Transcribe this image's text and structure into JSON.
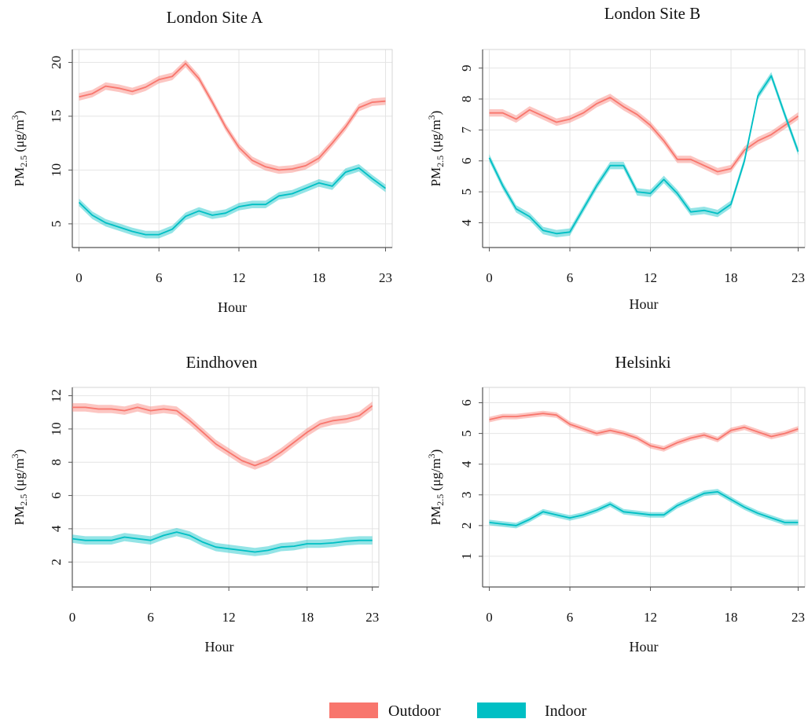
{
  "colors": {
    "outdoor": "#f8766d",
    "indoor": "#00bfc4",
    "grid": "#e4e4e4",
    "axis": "#555555"
  },
  "legend": {
    "position": "bottom",
    "items": [
      {
        "label": "Outdoor",
        "color": "#f8766d"
      },
      {
        "label": "Indoor",
        "color": "#00bfc4"
      }
    ]
  },
  "chart_data": [
    {
      "type": "line",
      "title": "London Site A",
      "xlabel": "Hour",
      "ylabel_pm": "PM",
      "ylabel_sub": "2.5",
      "ylabel_unit": " (μg/m",
      "ylabel_sup": "3",
      "ylabel_end": ")",
      "xticks": [
        0,
        6,
        12,
        18,
        23
      ],
      "yticks": [
        5,
        10,
        15,
        20
      ],
      "xlim": [
        -0.5,
        23.5
      ],
      "ylim": [
        2.8,
        21.2
      ],
      "band": 0.35,
      "x": [
        0,
        1,
        2,
        3,
        4,
        5,
        6,
        7,
        8,
        9,
        10,
        11,
        12,
        13,
        14,
        15,
        16,
        17,
        18,
        19,
        20,
        21,
        22,
        23
      ],
      "series": [
        {
          "name": "Outdoor",
          "values": [
            16.8,
            17.1,
            17.8,
            17.6,
            17.3,
            17.7,
            18.4,
            18.7,
            19.9,
            18.5,
            16.3,
            14.0,
            12.1,
            10.9,
            10.3,
            10.0,
            10.1,
            10.4,
            11.1,
            12.5,
            14.0,
            15.8,
            16.3,
            16.4
          ]
        },
        {
          "name": "Indoor",
          "values": [
            7.0,
            5.8,
            5.1,
            4.7,
            4.3,
            4.0,
            4.0,
            4.5,
            5.7,
            6.2,
            5.8,
            6.0,
            6.6,
            6.8,
            6.8,
            7.6,
            7.8,
            8.3,
            8.8,
            8.5,
            9.8,
            10.2,
            9.2,
            8.3
          ]
        }
      ]
    },
    {
      "type": "line",
      "title": "London Site B",
      "xlabel": "Hour",
      "ylabel_pm": "PM",
      "ylabel_sub": "2.5",
      "ylabel_unit": " (μg/m",
      "ylabel_sup": "3",
      "ylabel_end": ")",
      "xticks": [
        0,
        6,
        12,
        18,
        23
      ],
      "yticks": [
        4,
        5,
        6,
        7,
        8,
        9
      ],
      "xlim": [
        -0.5,
        23.5
      ],
      "ylim": [
        3.2,
        9.6
      ],
      "band": 0.12,
      "x": [
        0,
        1,
        2,
        3,
        4,
        5,
        6,
        7,
        8,
        9,
        10,
        11,
        12,
        13,
        14,
        15,
        16,
        17,
        18,
        19,
        20,
        21,
        22,
        23
      ],
      "series": [
        {
          "name": "Outdoor",
          "values": [
            7.55,
            7.55,
            7.35,
            7.65,
            7.45,
            7.25,
            7.35,
            7.55,
            7.85,
            8.05,
            7.75,
            7.5,
            7.15,
            6.65,
            6.05,
            6.05,
            5.85,
            5.65,
            5.75,
            6.35,
            6.65,
            6.85,
            7.15,
            7.45
          ]
        },
        {
          "name": "Indoor",
          "values": [
            6.1,
            5.2,
            4.45,
            4.2,
            3.75,
            3.65,
            3.7,
            4.45,
            5.2,
            5.85,
            5.85,
            5.0,
            4.95,
            5.4,
            4.95,
            4.35,
            4.4,
            4.3,
            4.6,
            6.0,
            8.1,
            8.75,
            7.5,
            6.3
          ]
        }
      ]
    },
    {
      "type": "line",
      "title": "Eindhoven",
      "xlabel": "Hour",
      "ylabel_pm": "PM",
      "ylabel_sub": "2.5",
      "ylabel_unit": " (μg/m",
      "ylabel_sup": "3",
      "ylabel_end": ")",
      "xticks": [
        0,
        6,
        12,
        18,
        23
      ],
      "yticks": [
        2,
        4,
        6,
        8,
        10,
        12
      ],
      "xlim": [
        0,
        23.5
      ],
      "ylim": [
        0.5,
        12.5
      ],
      "band": 0.25,
      "x": [
        0,
        1,
        2,
        3,
        4,
        5,
        6,
        7,
        8,
        9,
        10,
        11,
        12,
        13,
        14,
        15,
        16,
        17,
        18,
        19,
        20,
        21,
        22,
        23
      ],
      "series": [
        {
          "name": "Outdoor",
          "values": [
            11.3,
            11.3,
            11.2,
            11.2,
            11.1,
            11.3,
            11.1,
            11.2,
            11.1,
            10.5,
            9.8,
            9.1,
            8.6,
            8.1,
            7.8,
            8.1,
            8.6,
            9.2,
            9.8,
            10.3,
            10.5,
            10.6,
            10.8,
            11.4
          ]
        },
        {
          "name": "Indoor",
          "values": [
            3.4,
            3.3,
            3.3,
            3.3,
            3.5,
            3.4,
            3.3,
            3.6,
            3.8,
            3.6,
            3.2,
            2.9,
            2.8,
            2.7,
            2.6,
            2.7,
            2.9,
            2.95,
            3.1,
            3.1,
            3.15,
            3.25,
            3.3,
            3.3
          ]
        }
      ]
    },
    {
      "type": "line",
      "title": "Helsinki",
      "xlabel": "Hour",
      "ylabel_pm": "PM",
      "ylabel_sub": "2.5",
      "ylabel_unit": " (μg/m",
      "ylabel_sup": "3",
      "ylabel_end": ")",
      "xticks": [
        0,
        6,
        12,
        18,
        23
      ],
      "yticks": [
        1,
        2,
        3,
        4,
        5,
        6
      ],
      "xlim": [
        -0.5,
        23.5
      ],
      "ylim": [
        0.0,
        6.5
      ],
      "band": 0.09,
      "x": [
        0,
        1,
        2,
        3,
        4,
        5,
        6,
        7,
        8,
        9,
        10,
        11,
        12,
        13,
        14,
        15,
        16,
        17,
        18,
        19,
        20,
        21,
        22,
        23
      ],
      "series": [
        {
          "name": "Outdoor",
          "values": [
            5.45,
            5.55,
            5.55,
            5.6,
            5.65,
            5.6,
            5.3,
            5.15,
            5.0,
            5.1,
            5.0,
            4.85,
            4.6,
            4.5,
            4.7,
            4.85,
            4.95,
            4.8,
            5.1,
            5.2,
            5.05,
            4.9,
            5.0,
            5.15
          ]
        },
        {
          "name": "Indoor",
          "values": [
            2.1,
            2.05,
            2.0,
            2.2,
            2.45,
            2.35,
            2.25,
            2.35,
            2.5,
            2.7,
            2.45,
            2.4,
            2.35,
            2.35,
            2.65,
            2.85,
            3.05,
            3.1,
            2.85,
            2.6,
            2.4,
            2.25,
            2.1,
            2.1
          ]
        }
      ]
    }
  ]
}
